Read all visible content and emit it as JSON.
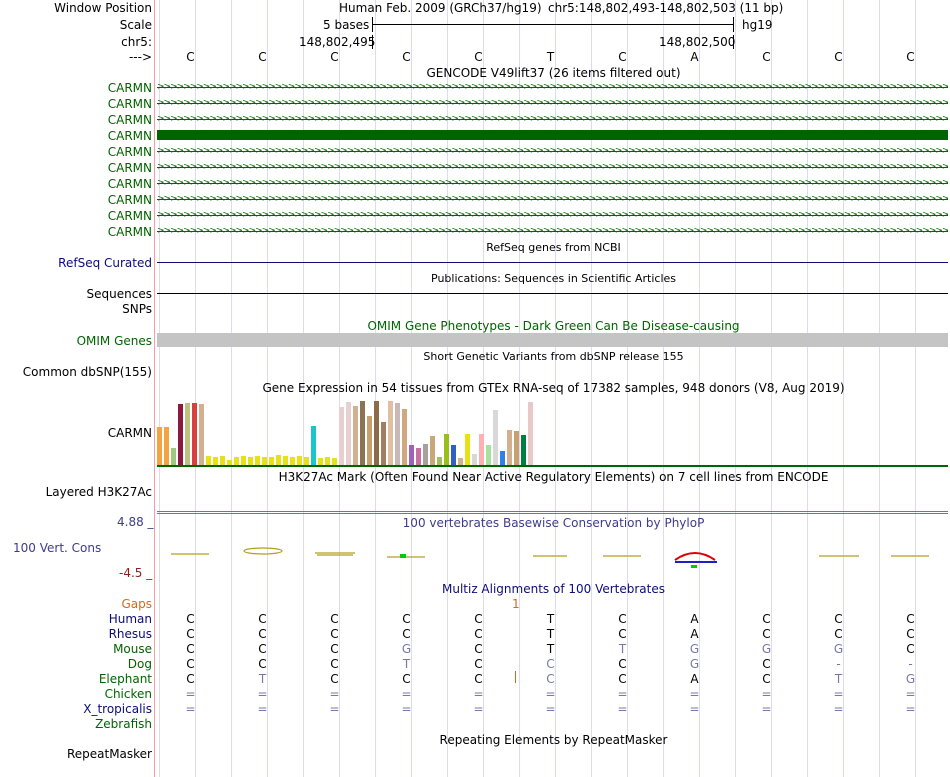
{
  "ruler": {
    "window_label": "Window Position",
    "assembly_text": "Human Feb. 2009 (GRCh37/hg19)",
    "position_text": "chr5:148,802,493-148,802,503 (11 bp)",
    "scale_label": "Scale",
    "scale_text": "5 bases",
    "db_text": "hg19",
    "chrom_label": "chr5:",
    "pos_left": "148,802,495",
    "pos_right": "148,802,500",
    "strand_label": "--->",
    "bases": [
      "C",
      "C",
      "C",
      "C",
      "C",
      "T",
      "C",
      "A",
      "C",
      "C",
      "C"
    ]
  },
  "gencode": {
    "title": "GENCODE V49lift37 (26 items filtered out)",
    "tracks": [
      "CARMN",
      "CARMN",
      "CARMN",
      "CARMN",
      "CARMN",
      "CARMN",
      "CARMN",
      "CARMN",
      "CARMN",
      "CARMN"
    ],
    "color": "#006400"
  },
  "refseq": {
    "title": "RefSeq genes from NCBI",
    "label": "RefSeq Curated",
    "color": "#0c0c78"
  },
  "publications": {
    "title": "Publications: Sequences in Scientific Articles",
    "label": "Sequences"
  },
  "snps_label": "SNPs",
  "omim": {
    "title": "OMIM Gene Phenotypes - Dark Green Can Be Disease-causing",
    "label": "OMIM Genes",
    "color": "#006400"
  },
  "dbsnp": {
    "title": "Short Genetic Variants from dbSNP release 155",
    "label": "Common dbSNP(155)"
  },
  "gtex": {
    "title": "Gene Expression in 54 tissues from GTEx RNA-seq of 17382 samples, 948 donors (V8, Aug 2019)",
    "label": "CARMN",
    "bar_values": [
      0.56,
      0.56,
      0.25,
      0.9,
      0.91,
      0.91,
      0.89,
      0.13,
      0.12,
      0.13,
      0.07,
      0.12,
      0.13,
      0.12,
      0.13,
      0.12,
      0.12,
      0.14,
      0.13,
      0.12,
      0.13,
      0.12,
      0.58,
      0.11,
      0.12,
      0.11,
      0.86,
      0.92,
      0.87,
      0.94,
      0.72,
      0.94,
      0.63,
      0.94,
      0.91,
      0.82,
      0.3,
      0.25,
      0.31,
      0.42,
      0.12,
      0.45,
      0.3,
      0.1,
      0.45,
      0.16,
      0.45,
      0.3,
      0.81,
      0.21,
      0.52,
      0.5,
      0.44,
      0.93
    ],
    "bar_colors": [
      "#f4a340",
      "#f4a340",
      "#a0c880",
      "#8b1a3e",
      "#c0c080",
      "#d84040",
      "#d2b090",
      "#e8e018",
      "#e8e018",
      "#e8e018",
      "#e8e018",
      "#e8e018",
      "#e8e018",
      "#e8e018",
      "#e8e018",
      "#e8e018",
      "#e8e018",
      "#e8e018",
      "#e8e018",
      "#e8e018",
      "#e8e018",
      "#e8e018",
      "#18c8c8",
      "#e8e018",
      "#e8e018",
      "#e8e018",
      "#e8d0d0",
      "#e8d0d0",
      "#d2b090",
      "#8b7355",
      "#c8a070",
      "#8b6b4a",
      "#a08060",
      "#e0c0a0",
      "#c8b8b8",
      "#d0a880",
      "#a060c0",
      "#c870a0",
      "#a8a0a0",
      "#c8a878",
      "#a0c060",
      "#98c018",
      "#3060c0",
      "#d2b090",
      "#e8e018",
      "#d8d8d8",
      "#ffb0b0",
      "#a8e0a0",
      "#d8d8d8",
      "#3080e8",
      "#d2b090",
      "#c8a070",
      "#008040",
      "#e8c8c8"
    ],
    "baseline_color": "#006400"
  },
  "h3k27ac": {
    "title": "H3K27Ac Mark (Often Found Near Active Regulatory Elements) on 7 cell lines from ENCODE",
    "label": "Layered H3K27Ac"
  },
  "conservation": {
    "title": "100 vertebrates Basewise Conservation by PhyloP",
    "label": "100 Vert. Cons",
    "max_text": "4.88 _",
    "min_text": "-4.5 _",
    "label_color": "#3c3c8c",
    "min_color": "#8c1e1e"
  },
  "multiz": {
    "title": "Multiz Alignments of 100 Vertebrates",
    "gaps_label": "Gaps",
    "gap_count": "1",
    "species": [
      {
        "name": "Human",
        "color": "#0c0c78",
        "bases": [
          "C",
          "C",
          "C",
          "C",
          "C",
          "T",
          "C",
          "A",
          "C",
          "C",
          "C"
        ]
      },
      {
        "name": "Rhesus",
        "color": "#0c0c78",
        "bases": [
          "C",
          "C",
          "C",
          "C",
          "C",
          "T",
          "C",
          "A",
          "C",
          "C",
          "C"
        ]
      },
      {
        "name": "Mouse",
        "color": "#006400",
        "bases": [
          "C",
          "C",
          "C",
          "G",
          "C",
          "T",
          "T",
          "G",
          "G",
          "G",
          "C"
        ]
      },
      {
        "name": "Dog",
        "color": "#006400",
        "bases": [
          "C",
          "C",
          "C",
          "T",
          "C",
          "C",
          "C",
          "G",
          "C",
          "-",
          "-"
        ]
      },
      {
        "name": "Elephant",
        "color": "#006400",
        "bases": [
          "C",
          "T",
          "C",
          "C",
          "C",
          "C",
          "C",
          "A",
          "C",
          "T",
          "G"
        ]
      },
      {
        "name": "Chicken",
        "color": "#006400",
        "bases": [
          "=",
          "=",
          "=",
          "=",
          "=",
          "=",
          "=",
          "=",
          "=",
          "=",
          "="
        ]
      },
      {
        "name": "X_tropicalis",
        "color": "#0c0c78",
        "bases": [
          "=",
          "=",
          "=",
          "=",
          "=",
          "=",
          "=",
          "=",
          "=",
          "=",
          "="
        ]
      },
      {
        "name": "Zebrafish",
        "color": "#006400",
        "bases": [
          "",
          "",
          "",
          "",
          "",
          "",
          "",
          "",
          "",
          "",
          ""
        ]
      }
    ]
  },
  "repeatmasker": {
    "title": "Repeating Elements by RepeatMasker",
    "label": "RepeatMasker"
  }
}
